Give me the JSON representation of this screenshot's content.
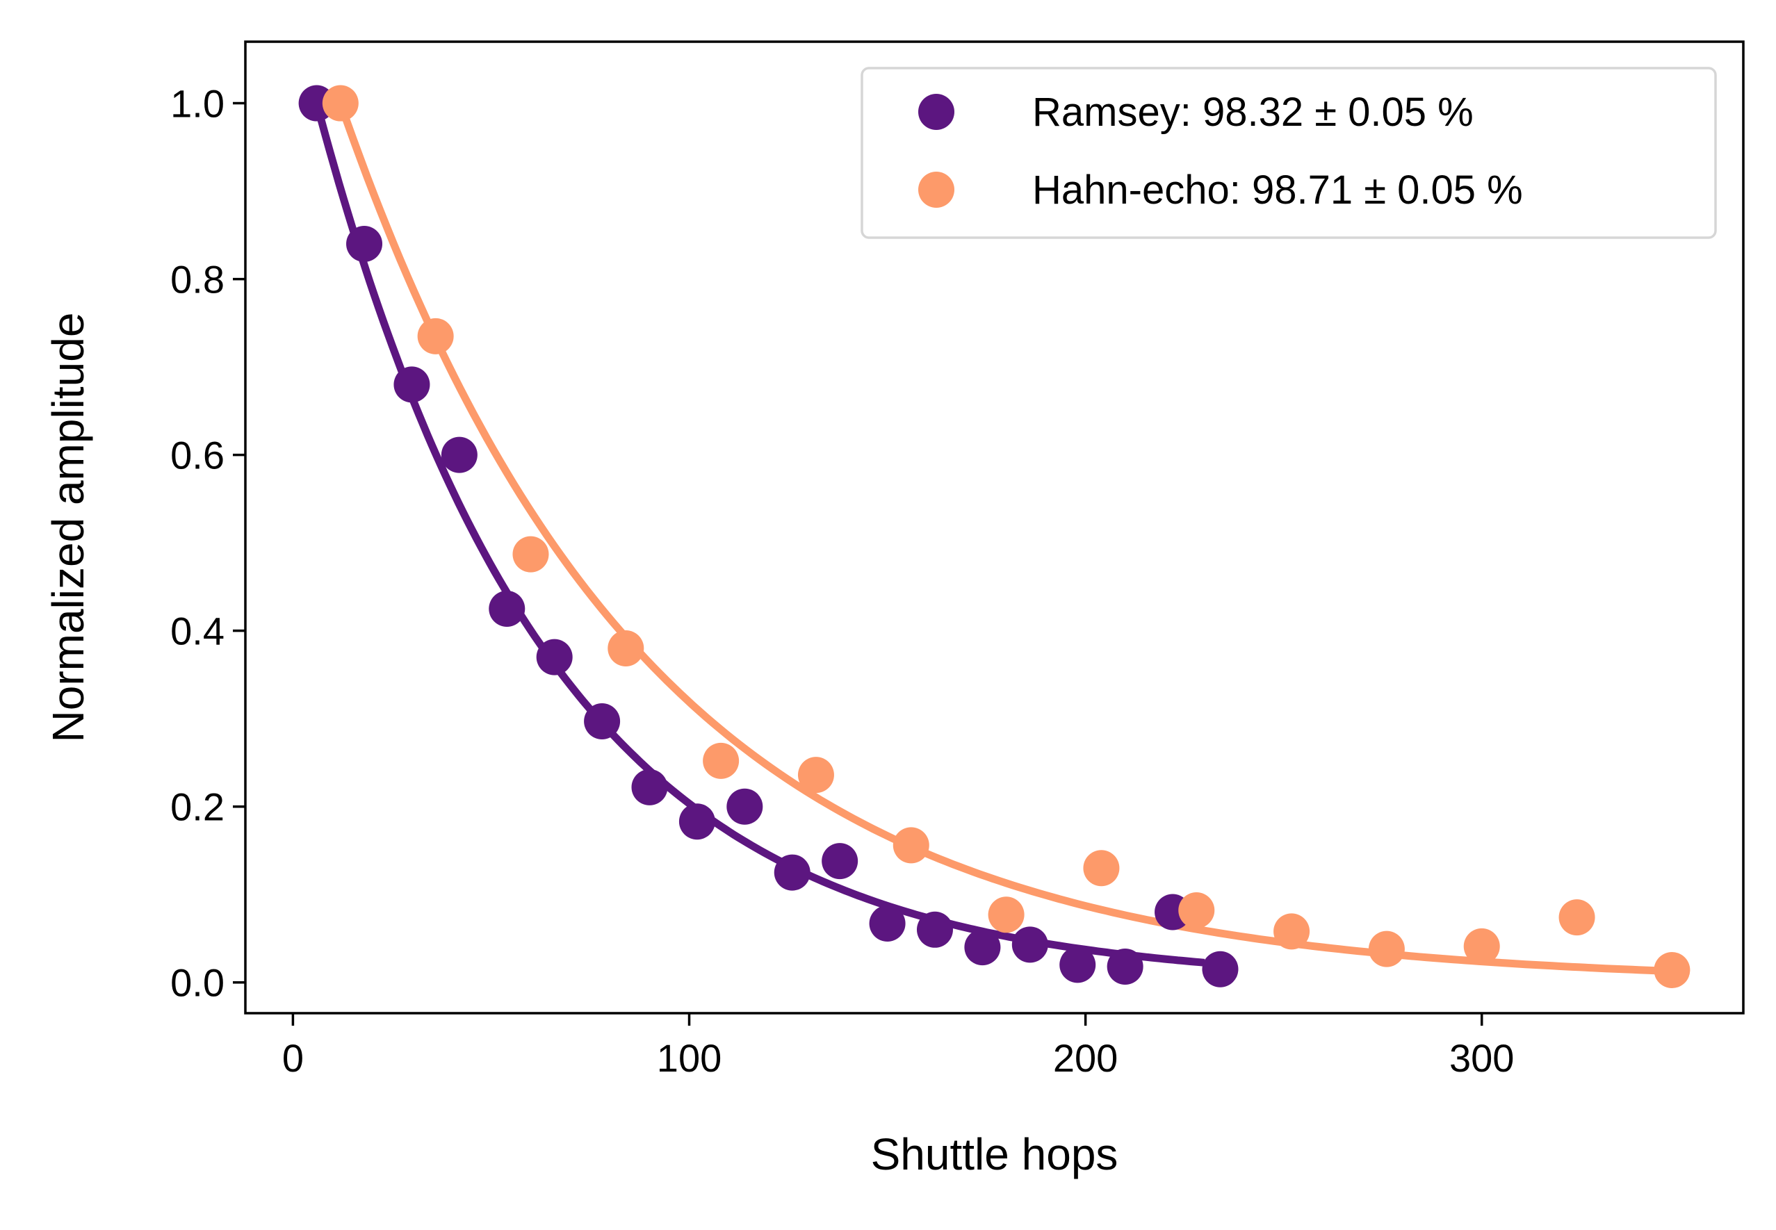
{
  "chart_data": {
    "type": "scatter",
    "xlabel": "Shuttle hops",
    "ylabel": "Normalized amplitude",
    "xlim": [
      -12,
      366
    ],
    "ylim": [
      -0.035,
      1.07
    ],
    "xticks": [
      0,
      100,
      200,
      300
    ],
    "xtick_labels": [
      "0",
      "100",
      "200",
      "300"
    ],
    "yticks": [
      0.0,
      0.2,
      0.4,
      0.6,
      0.8,
      1.0
    ],
    "ytick_labels": [
      "0.0",
      "0.2",
      "0.4",
      "0.6",
      "0.8",
      "1.0"
    ],
    "grid": false,
    "legend_position": "top-right",
    "series": [
      {
        "name": "Ramsey: 98.32 ± 0.05 %",
        "color": "#5c1680",
        "x": [
          6,
          18,
          30,
          42,
          54,
          66,
          78,
          90,
          102,
          114,
          126,
          138,
          150,
          162,
          174,
          186,
          198,
          210,
          222,
          234
        ],
        "y": [
          1.0,
          0.84,
          0.68,
          0.6,
          0.425,
          0.37,
          0.297,
          0.222,
          0.183,
          0.2,
          0.125,
          0.138,
          0.067,
          0.06,
          0.04,
          0.043,
          0.02,
          0.018,
          0.08,
          0.015
        ],
        "fit": {
          "model": "exponential",
          "x_start": 6,
          "x_end": 230,
          "decay_per_hop": 0.9832
        }
      },
      {
        "name": "Hahn-echo: 98.71 ± 0.05 %",
        "color": "#fd9a6a",
        "x": [
          12,
          36,
          60,
          84,
          108,
          132,
          156,
          180,
          204,
          228,
          252,
          276,
          300,
          324,
          348
        ],
        "y": [
          1.0,
          0.735,
          0.487,
          0.38,
          0.252,
          0.236,
          0.156,
          0.077,
          0.13,
          0.082,
          0.058,
          0.038,
          0.041,
          0.074,
          0.014
        ],
        "fit": {
          "model": "exponential",
          "x_start": 12,
          "x_end": 348,
          "decay_per_hop": 0.9871
        }
      }
    ]
  }
}
